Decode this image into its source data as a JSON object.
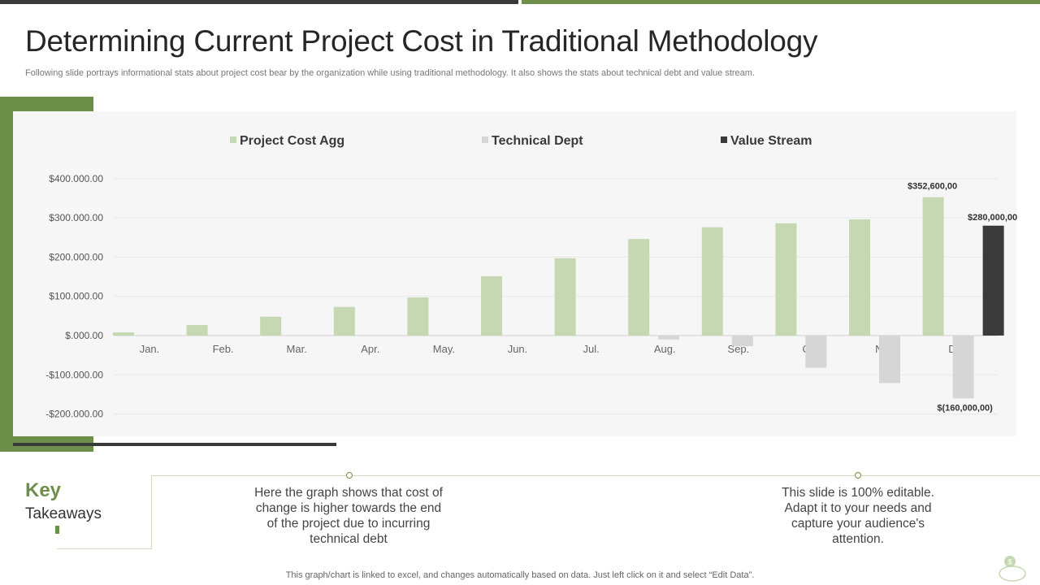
{
  "title": "Determining Current Project Cost in Traditional Methodology",
  "subtitle": "Following slide portrays informational stats about project cost bear by the organization while using traditional methodology. It also shows the stats about technical debt and value stream.",
  "chart_data": {
    "type": "bar",
    "categories": [
      "Jan.",
      "Feb.",
      "Mar.",
      "Apr.",
      "May.",
      "Jun.",
      "Jul.",
      "Aug.",
      "Sep.",
      "Oct.",
      "Nov.",
      "Dec."
    ],
    "series": [
      {
        "name": "Project Cost Agg",
        "color": "#c5d8b1",
        "values": [
          8000,
          27000,
          48000,
          73000,
          97000,
          151000,
          197000,
          246000,
          276000,
          286000,
          296000,
          352600
        ]
      },
      {
        "name": "Technical Dept",
        "color": "#d6d6d6",
        "values": [
          0,
          0,
          0,
          0,
          0,
          0,
          0,
          -10000,
          -27000,
          -82000,
          -121000,
          -160000
        ]
      },
      {
        "name": "Value Stream",
        "color": "#3a3a3a",
        "values": [
          0,
          0,
          0,
          0,
          0,
          0,
          0,
          0,
          0,
          0,
          0,
          280000
        ]
      }
    ],
    "yticks": [
      "$400.000.00",
      "$300.000.00",
      "$200.000.00",
      "$100.000.00",
      "$.000.00",
      "-$100.000.00",
      "-$200.000.00"
    ],
    "ylim": [
      -250000,
      400000
    ],
    "data_labels": {
      "project_cost_dec": "$352,600,00",
      "value_stream_dec": "$280,000,00",
      "technical_dept_dec": "$(160,000,00)"
    },
    "legend": "top",
    "grid": true
  },
  "takeaways": {
    "key": "Key",
    "takeaways": "Takeaways",
    "items": [
      "Here the graph shows that cost of change is higher towards the end of the project due to incurring technical debt",
      "This slide is 100% editable. Adapt it to your needs and capture your audience's attention."
    ]
  },
  "footer": "This graph/chart is linked to excel, and changes automatically based on data. Just left click on it and select “Edit Data”."
}
